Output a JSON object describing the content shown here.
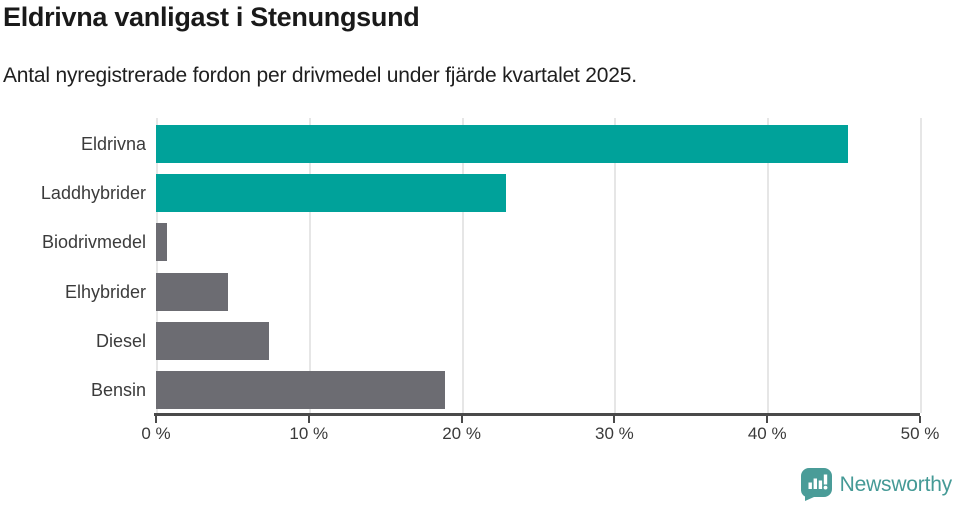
{
  "chart": {
    "title": "Eldrivna vanligast i Stenungsund",
    "subtitle": "Antal nyregistrerade fordon per drivmedel under fjärde kvartalet 2025."
  },
  "chart_data": {
    "type": "bar",
    "orientation": "horizontal",
    "title": "Eldrivna vanligast i Stenungsund",
    "subtitle": "Antal nyregistrerade fordon per drivmedel under fjärde kvartalet 2025.",
    "categories": [
      "Eldrivna",
      "Laddhybrider",
      "Biodrivmedel",
      "Elhybrider",
      "Diesel",
      "Bensin"
    ],
    "values": [
      45.3,
      22.9,
      0.7,
      4.7,
      7.4,
      18.9
    ],
    "unit": "%",
    "xlim": [
      0,
      50
    ],
    "x_ticks": [
      0,
      10,
      20,
      30,
      40,
      50
    ],
    "x_tick_labels": [
      "0 %",
      "10 %",
      "20 %",
      "30 %",
      "40 %",
      "50 %"
    ],
    "bar_colors": [
      "#00A29A",
      "#00A29A",
      "#6C6C72",
      "#6C6C72",
      "#6C6C72",
      "#6C6C72"
    ],
    "grid": true,
    "legend": false
  },
  "colors": {
    "accent_teal": "#00A29A",
    "neutral_gray": "#6C6C72",
    "axis": "#4a4a4a",
    "gridline": "#e6e6e6"
  },
  "branding": {
    "logo_text": "Newsworthy",
    "logo_text_color": "#459A96",
    "logo_icon_color": "#4A9C98"
  }
}
